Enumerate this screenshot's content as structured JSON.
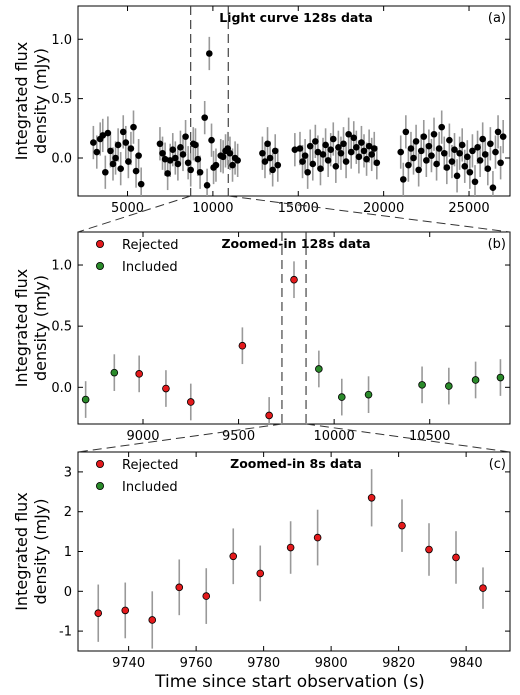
{
  "figure": {
    "xlabel": "Time since start observation (s)"
  },
  "chart_data": [
    {
      "type": "scatter",
      "title": "Light curve 128s data",
      "tag": "(a)",
      "ylabel": "Integrated flux density (mJy)",
      "xlim": [
        2100,
        27400
      ],
      "ylim": [
        -0.32,
        1.28
      ],
      "xticks": [
        5000,
        10000,
        15000,
        20000,
        25000
      ],
      "yticks": [
        0.0,
        0.5,
        1.0
      ],
      "grid": false,
      "marker_color": "#000000",
      "errorbar_color": "#999999",
      "legend": null,
      "zoom_window": [
        8700,
        10900
      ],
      "points": [
        [
          3000,
          0.13,
          0.14
        ],
        [
          3200,
          0.05,
          0.14
        ],
        [
          3400,
          0.16,
          0.14
        ],
        [
          3550,
          0.19,
          0.14
        ],
        [
          3700,
          -0.12,
          0.14
        ],
        [
          3850,
          0.21,
          0.14
        ],
        [
          4000,
          0.06,
          0.14
        ],
        [
          4150,
          -0.05,
          0.14
        ],
        [
          4300,
          0.0,
          0.14
        ],
        [
          4450,
          0.11,
          0.14
        ],
        [
          4600,
          -0.09,
          0.14
        ],
        [
          4750,
          0.22,
          0.14
        ],
        [
          4900,
          0.13,
          0.14
        ],
        [
          5050,
          -0.03,
          0.14
        ],
        [
          5200,
          0.08,
          0.14
        ],
        [
          5350,
          0.26,
          0.14
        ],
        [
          5500,
          -0.11,
          0.14
        ],
        [
          5650,
          0.02,
          0.14
        ],
        [
          5800,
          -0.22,
          0.14
        ],
        [
          6900,
          0.12,
          0.14
        ],
        [
          7050,
          0.04,
          0.14
        ],
        [
          7200,
          -0.01,
          0.14
        ],
        [
          7350,
          -0.13,
          0.14
        ],
        [
          7500,
          -0.02,
          0.14
        ],
        [
          7650,
          0.07,
          0.14
        ],
        [
          7800,
          0.0,
          0.14
        ],
        [
          7950,
          -0.05,
          0.14
        ],
        [
          8100,
          0.09,
          0.14
        ],
        [
          8250,
          0.03,
          0.14
        ],
        [
          8400,
          0.18,
          0.14
        ],
        [
          8550,
          -0.04,
          0.14
        ],
        [
          8700,
          -0.1,
          0.14
        ],
        [
          8850,
          0.12,
          0.14
        ],
        [
          8980,
          0.11,
          0.14
        ],
        [
          9120,
          -0.01,
          0.14
        ],
        [
          9250,
          -0.12,
          0.14
        ],
        [
          9520,
          0.34,
          0.14
        ],
        [
          9660,
          -0.23,
          0.14
        ],
        [
          9790,
          0.88,
          0.14
        ],
        [
          9920,
          0.15,
          0.14
        ],
        [
          10040,
          -0.08,
          0.14
        ],
        [
          10180,
          -0.06,
          0.14
        ],
        [
          10460,
          0.02,
          0.14
        ],
        [
          10600,
          0.01,
          0.14
        ],
        [
          10740,
          0.06,
          0.14
        ],
        [
          10870,
          0.08,
          0.14
        ],
        [
          11000,
          0.04,
          0.14
        ],
        [
          11150,
          -0.06,
          0.14
        ],
        [
          11300,
          0.0,
          0.14
        ],
        [
          11450,
          -0.02,
          0.14
        ],
        [
          12900,
          0.04,
          0.14
        ],
        [
          13050,
          -0.03,
          0.14
        ],
        [
          13200,
          0.12,
          0.14
        ],
        [
          13350,
          0.0,
          0.14
        ],
        [
          13500,
          -0.1,
          0.14
        ],
        [
          13650,
          0.06,
          0.14
        ],
        [
          13800,
          -0.06,
          0.14
        ],
        [
          14800,
          0.07,
          0.14
        ],
        [
          15100,
          0.08,
          0.14
        ],
        [
          15250,
          -0.03,
          0.14
        ],
        [
          15400,
          0.02,
          0.14
        ],
        [
          15550,
          -0.12,
          0.14
        ],
        [
          15700,
          0.1,
          0.14
        ],
        [
          15850,
          -0.05,
          0.14
        ],
        [
          16000,
          0.14,
          0.14
        ],
        [
          16150,
          0.05,
          0.14
        ],
        [
          16300,
          -0.09,
          0.14
        ],
        [
          16450,
          0.03,
          0.14
        ],
        [
          16600,
          0.11,
          0.14
        ],
        [
          16750,
          -0.02,
          0.14
        ],
        [
          16900,
          0.07,
          0.14
        ],
        [
          17050,
          0.16,
          0.14
        ],
        [
          17200,
          -0.07,
          0.14
        ],
        [
          17350,
          0.09,
          0.14
        ],
        [
          17500,
          0.04,
          0.14
        ],
        [
          17650,
          0.12,
          0.14
        ],
        [
          17800,
          -0.03,
          0.14
        ],
        [
          17950,
          0.2,
          0.14
        ],
        [
          18100,
          0.05,
          0.14
        ],
        [
          18250,
          0.17,
          0.14
        ],
        [
          18400,
          0.09,
          0.14
        ],
        [
          18550,
          0.01,
          0.14
        ],
        [
          18700,
          0.13,
          0.14
        ],
        [
          18850,
          0.06,
          0.14
        ],
        [
          19000,
          -0.01,
          0.14
        ],
        [
          19150,
          0.1,
          0.14
        ],
        [
          19300,
          0.03,
          0.14
        ],
        [
          19450,
          0.08,
          0.14
        ],
        [
          19600,
          -0.04,
          0.14
        ],
        [
          21000,
          0.05,
          0.14
        ],
        [
          21150,
          -0.18,
          0.14
        ],
        [
          21300,
          0.22,
          0.14
        ],
        [
          21450,
          -0.06,
          0.14
        ],
        [
          21600,
          0.08,
          0.14
        ],
        [
          21750,
          0.0,
          0.14
        ],
        [
          21900,
          0.14,
          0.14
        ],
        [
          22050,
          -0.1,
          0.14
        ],
        [
          22200,
          0.06,
          0.14
        ],
        [
          22350,
          0.18,
          0.14
        ],
        [
          22500,
          -0.02,
          0.14
        ],
        [
          22650,
          0.1,
          0.14
        ],
        [
          22800,
          0.02,
          0.14
        ],
        [
          22950,
          0.2,
          0.14
        ],
        [
          23100,
          -0.05,
          0.14
        ],
        [
          23250,
          0.08,
          0.14
        ],
        [
          23400,
          0.26,
          0.14
        ],
        [
          23550,
          0.04,
          0.14
        ],
        [
          23700,
          -0.08,
          0.14
        ],
        [
          23850,
          0.15,
          0.14
        ],
        [
          24000,
          -0.03,
          0.14
        ],
        [
          24150,
          0.07,
          0.14
        ],
        [
          24300,
          -0.15,
          0.14
        ],
        [
          24450,
          0.04,
          0.14
        ],
        [
          24600,
          0.11,
          0.14
        ],
        [
          24750,
          -0.07,
          0.14
        ],
        [
          24900,
          0.01,
          0.14
        ],
        [
          25050,
          -0.12,
          0.14
        ],
        [
          25200,
          0.06,
          0.14
        ],
        [
          25350,
          -0.2,
          0.14
        ],
        [
          25500,
          0.09,
          0.14
        ],
        [
          25650,
          -0.02,
          0.14
        ],
        [
          25800,
          0.16,
          0.14
        ],
        [
          25950,
          0.03,
          0.14
        ],
        [
          26100,
          -0.09,
          0.14
        ],
        [
          26250,
          0.12,
          0.14
        ],
        [
          26400,
          -0.25,
          0.14
        ],
        [
          26550,
          0.05,
          0.14
        ],
        [
          26700,
          0.22,
          0.14
        ],
        [
          26850,
          -0.04,
          0.14
        ],
        [
          27000,
          0.18,
          0.14
        ]
      ]
    },
    {
      "type": "scatter",
      "title": "Zoomed-in 128s data",
      "tag": "(b)",
      "ylabel": "Integrated flux density (mJy)",
      "xlim": [
        8660,
        10920
      ],
      "ylim": [
        -0.3,
        1.27
      ],
      "xticks": [
        9000,
        9500,
        10000,
        10500
      ],
      "yticks": [
        0.0,
        0.5,
        1.0
      ],
      "grid": false,
      "legend": "top-left",
      "series": [
        {
          "name": "Rejected",
          "color": "#e41a1c",
          "points": [
            [
              8980,
              0.11,
              0.15
            ],
            [
              9120,
              -0.01,
              0.15
            ],
            [
              9250,
              -0.12,
              0.15
            ],
            [
              9520,
              0.34,
              0.15
            ],
            [
              9660,
              -0.23,
              0.15
            ],
            [
              9790,
              0.88,
              0.15
            ]
          ]
        },
        {
          "name": "Included",
          "color": "#2a8a2a",
          "points": [
            [
              8700,
              -0.1,
              0.15
            ],
            [
              8850,
              0.12,
              0.15
            ],
            [
              9920,
              0.15,
              0.15
            ],
            [
              10040,
              -0.08,
              0.15
            ],
            [
              10180,
              -0.06,
              0.15
            ],
            [
              10460,
              0.02,
              0.15
            ],
            [
              10600,
              0.01,
              0.15
            ],
            [
              10740,
              0.06,
              0.15
            ],
            [
              10870,
              0.08,
              0.15
            ]
          ]
        }
      ],
      "errorbar_color": "#999999",
      "zoom_window": [
        9727,
        9853
      ]
    },
    {
      "type": "scatter",
      "title": "Zoomed-in 8s data",
      "tag": "(c)",
      "ylabel": "Integrated flux density (mJy)",
      "xlim": [
        9725,
        9853
      ],
      "ylim": [
        -1.5,
        3.5
      ],
      "xticks": [
        9740,
        9760,
        9780,
        9800,
        9820,
        9840
      ],
      "yticks": [
        -1,
        0,
        1,
        2,
        3
      ],
      "grid": false,
      "legend": "top-left",
      "series": [
        {
          "name": "Rejected",
          "color": "#e41a1c",
          "points": [
            [
              9731,
              -0.55,
              0.72
            ],
            [
              9739,
              -0.48,
              0.7
            ],
            [
              9747,
              -0.72,
              0.72
            ],
            [
              9755,
              0.1,
              0.7
            ],
            [
              9763,
              -0.12,
              0.7
            ],
            [
              9771,
              0.88,
              0.7
            ],
            [
              9779,
              0.45,
              0.7
            ],
            [
              9788,
              1.1,
              0.66
            ],
            [
              9796,
              1.35,
              0.7
            ],
            [
              9812,
              2.35,
              0.72
            ],
            [
              9821,
              1.65,
              0.66
            ],
            [
              9829,
              1.05,
              0.66
            ],
            [
              9837,
              0.85,
              0.66
            ],
            [
              9845,
              0.08,
              0.52
            ]
          ]
        },
        {
          "name": "Included",
          "color": "#2a8a2a",
          "points": []
        }
      ],
      "errorbar_color": "#999999"
    }
  ]
}
